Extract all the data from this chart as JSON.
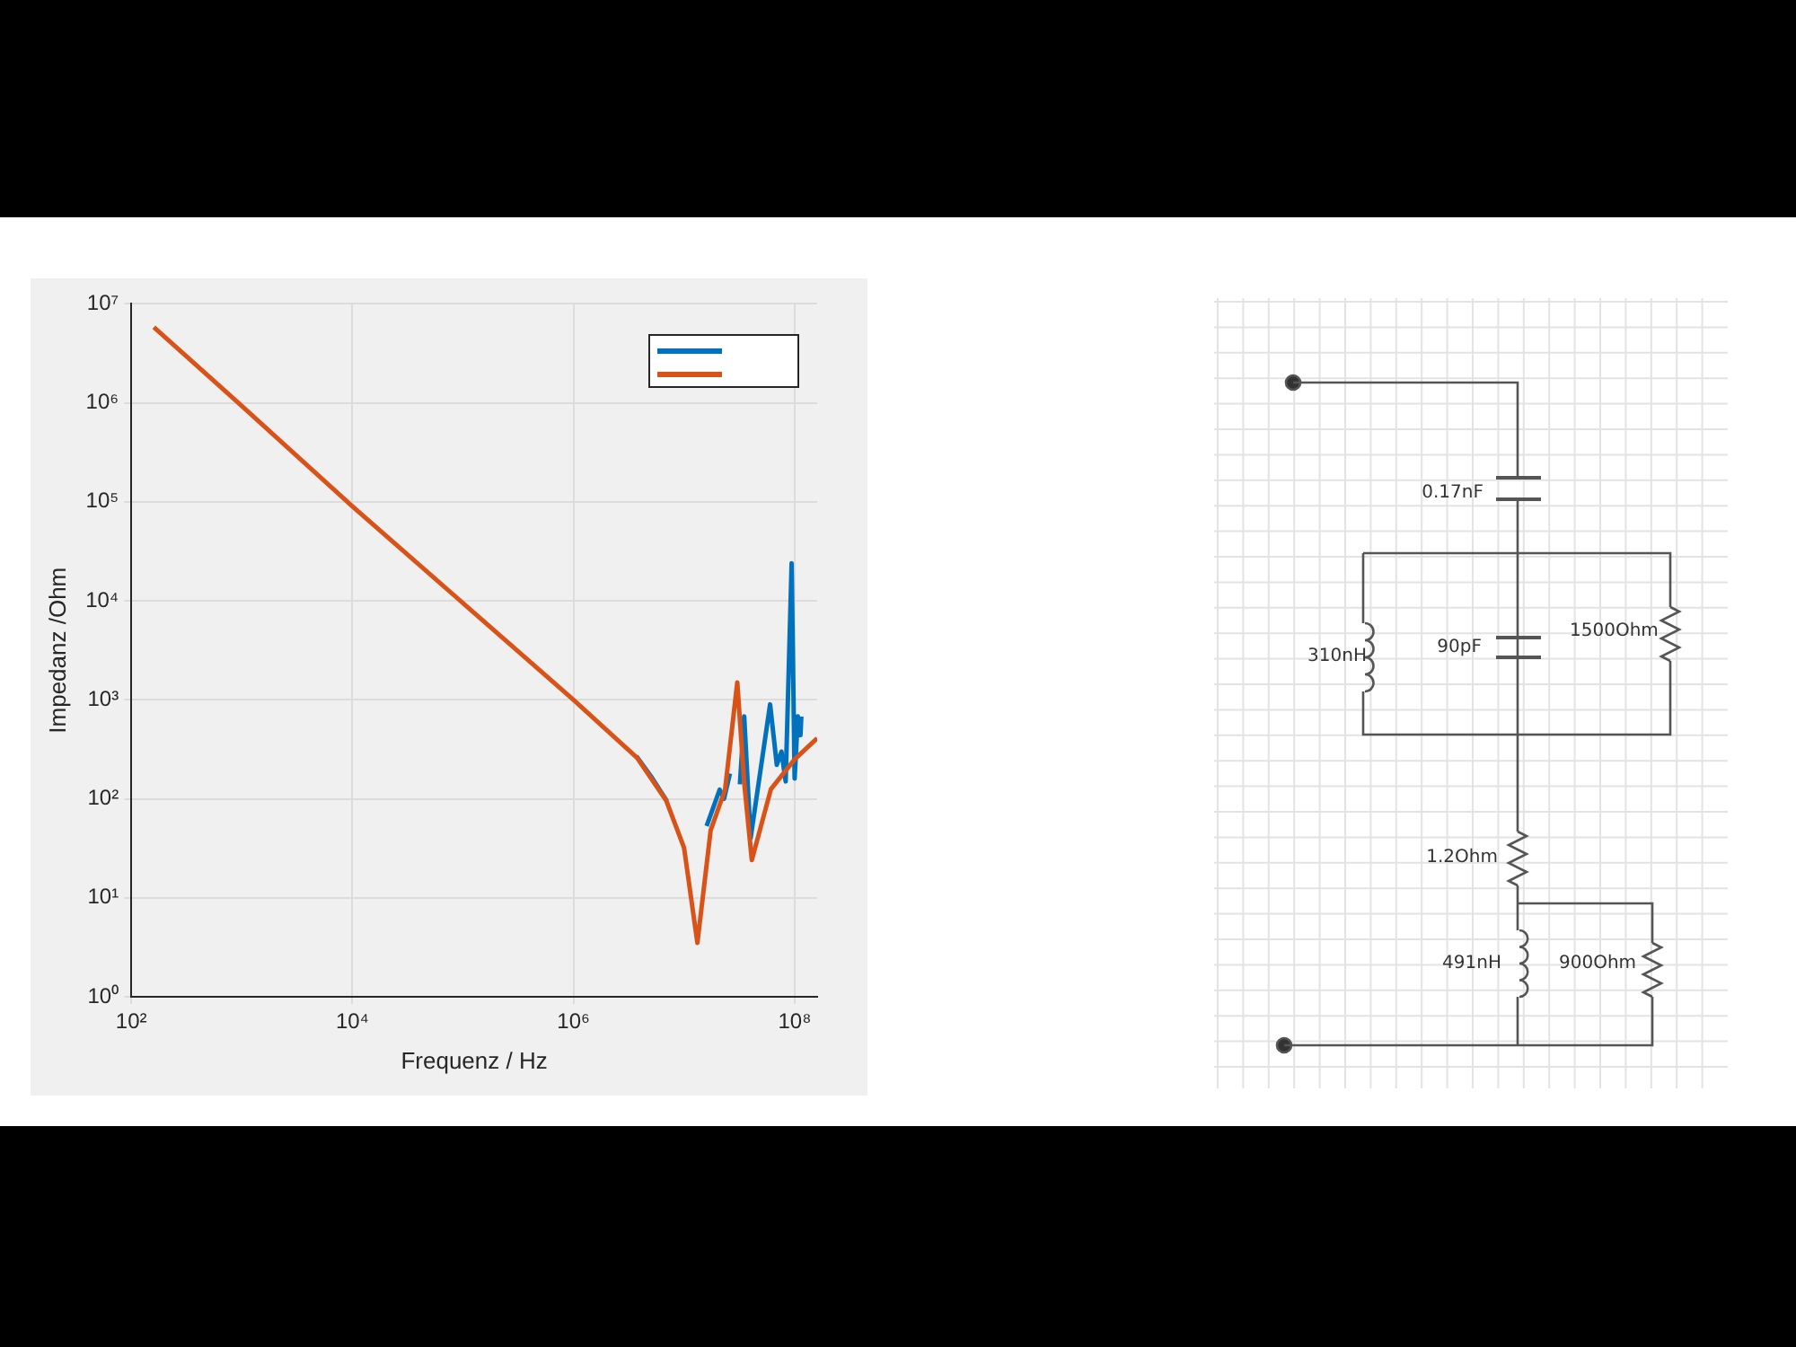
{
  "chart_data": [
    {
      "type": "line",
      "xlabel": "Frequenz / Hz",
      "ylabel": "Impedanz /Ohm",
      "log": "xy",
      "grid": true,
      "line_style": "solid",
      "xlim": [
        100,
        160000000
      ],
      "ylim": [
        1,
        10000000
      ],
      "xticks": [
        {
          "value": 100,
          "label": "10²"
        },
        {
          "value": 10000,
          "label": "10⁴"
        },
        {
          "value": 1000000,
          "label": "10⁶"
        },
        {
          "value": 100000000,
          "label": "10⁸"
        }
      ],
      "yticks": [
        {
          "value": 1,
          "label": "10⁰"
        },
        {
          "value": 10,
          "label": "10¹"
        },
        {
          "value": 100,
          "label": "10²"
        },
        {
          "value": 1000,
          "label": "10³"
        },
        {
          "value": 10000,
          "label": "10⁴"
        },
        {
          "value": 100000,
          "label": "10⁵"
        },
        {
          "value": 1000000,
          "label": "10⁶"
        },
        {
          "value": 10000000,
          "label": "10⁷"
        }
      ],
      "series": [
        {
          "color": "#0072bd",
          "x": [
            3700000,
            5000000,
            7000000,
            10000000,
            13200000,
            16000000,
            21000000,
            23000000,
            26000000,
            30000000,
            32000000,
            35000000,
            40000000,
            60000000,
            69000000,
            76000000,
            83000000,
            94000000,
            100000000,
            107000000,
            113000000,
            115000000
          ],
          "values": [
            270,
            170,
            95,
            null,
            null,
            53,
            124,
            100,
            180,
            null,
            140,
            680,
            40,
            900,
            220,
            300,
            150,
            24000,
            160,
            680,
            440,
            680
          ]
        },
        {
          "color": "#d95319",
          "x": [
            160,
            1000,
            10000,
            100000,
            1000000,
            3760000,
            6900000,
            10000000,
            13200000,
            17400000,
            23500000,
            30300000,
            35000000,
            41000000,
            61000000,
            100000000,
            160000000
          ],
          "values": [
            5800000,
            930000,
            90000,
            9500,
            1000,
            260,
            96,
            32,
            3.5,
            48,
            124,
            1500,
            145,
            24,
            125,
            250,
            410
          ]
        }
      ]
    },
    {
      "type": "other",
      "annotations": [
        "0.17nF",
        "310nH",
        "90pF",
        "1500Ohm",
        "1.2Ohm",
        "491nH",
        "900Ohm"
      ]
    }
  ]
}
